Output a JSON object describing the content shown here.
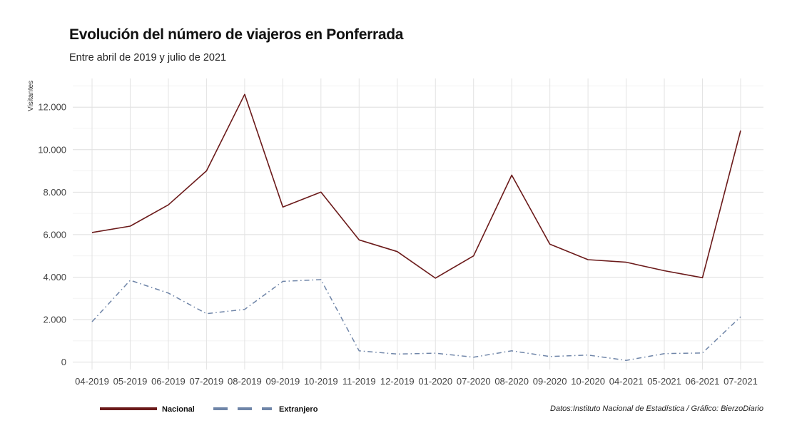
{
  "chart_data": {
    "type": "line",
    "title": "Evolución del número de viajeros en Ponferrada",
    "subtitle": "Entre abril de 2019 y julio de 2021",
    "ylabel": "Visitantes",
    "xlabel": "",
    "categories": [
      "04-2019",
      "05-2019",
      "06-2019",
      "07-2019",
      "08-2019",
      "09-2019",
      "10-2019",
      "11-2019",
      "12-2019",
      "01-2020",
      "07-2020",
      "08-2020",
      "09-2020",
      "10-2020",
      "04-2021",
      "05-2021",
      "06-2021",
      "07-2021"
    ],
    "ylim": [
      -350,
      13350
    ],
    "yticks": [
      0,
      2000,
      4000,
      6000,
      8000,
      10000,
      12000
    ],
    "ytick_labels": [
      "0",
      "2.000",
      "4.000",
      "6.000",
      "8.000",
      "10.000",
      "12.000"
    ],
    "grid": true,
    "legend_position": "bottom-left",
    "series": [
      {
        "name": "Nacional",
        "color": "#6b1a1a",
        "dash": "solid",
        "values": [
          6100,
          6400,
          7400,
          9000,
          12600,
          7300,
          8000,
          5750,
          5200,
          3950,
          5000,
          8800,
          5550,
          4820,
          4700,
          4300,
          3970,
          10900
        ]
      },
      {
        "name": "Extranjero",
        "color": "#6f85a8",
        "dash": "dashdot",
        "values": [
          1900,
          3850,
          3250,
          2280,
          2480,
          3800,
          3880,
          530,
          380,
          420,
          230,
          530,
          260,
          330,
          80,
          400,
          430,
          2130
        ]
      }
    ]
  },
  "source": "Datos:Instituto Nacional de Estadística / Gráfico: BierzoDiario"
}
